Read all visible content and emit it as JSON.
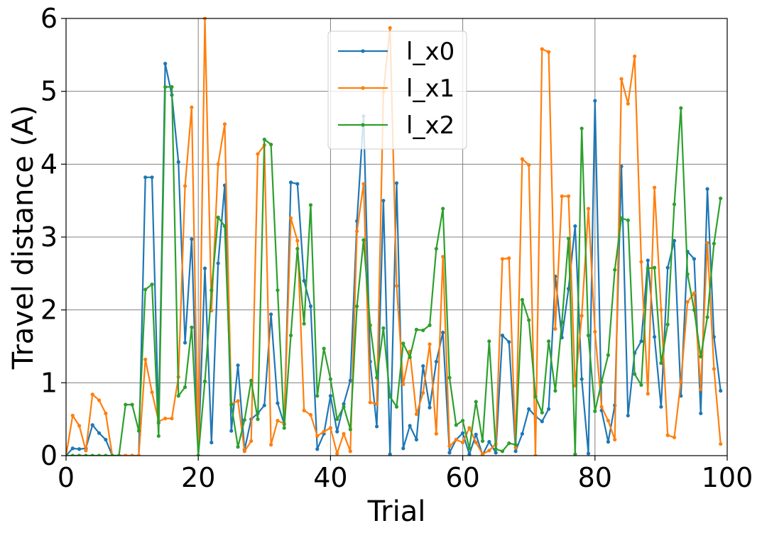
{
  "chart_data": {
    "type": "line",
    "title": "",
    "xlabel": "Trial",
    "ylabel": "Travel distance (A)",
    "xlim": [
      0,
      100
    ],
    "ylim": [
      0,
      6
    ],
    "xticks": [
      0,
      20,
      40,
      60,
      80,
      100
    ],
    "yticks": [
      0,
      1,
      2,
      3,
      4,
      5,
      6
    ],
    "grid": true,
    "legend_position": "top-center",
    "series": [
      {
        "name": "l_x0",
        "color": "#1f77b4",
        "x": [
          0,
          1,
          2,
          3,
          4,
          5,
          6,
          7,
          8,
          9,
          10,
          11,
          12,
          13,
          14,
          15,
          16,
          17,
          18,
          19,
          20,
          21,
          22,
          23,
          24,
          25,
          26,
          27,
          28,
          29,
          30,
          31,
          32,
          33,
          34,
          35,
          36,
          37,
          38,
          39,
          40,
          41,
          42,
          43,
          44,
          45,
          46,
          47,
          48,
          49,
          50,
          51,
          52,
          53,
          54,
          55,
          56,
          57,
          58,
          59,
          60,
          61,
          62,
          63,
          64,
          65,
          66,
          67,
          68,
          69,
          70,
          71,
          72,
          73,
          74,
          75,
          76,
          77,
          78,
          79,
          80,
          81,
          82,
          83,
          84,
          85,
          86,
          87,
          88,
          89,
          90,
          91,
          92,
          93,
          94,
          95,
          96,
          97,
          98,
          99
        ],
        "y": [
          0.0,
          0.1,
          0.09,
          0.1,
          0.42,
          0.31,
          0.22,
          0.0,
          0.0,
          0.0,
          0.0,
          0.0,
          3.82,
          3.82,
          0.45,
          5.38,
          4.95,
          4.03,
          1.55,
          2.97,
          0.0,
          2.57,
          0.18,
          2.64,
          3.71,
          0.34,
          1.24,
          0.08,
          0.5,
          0.58,
          0.69,
          1.94,
          0.72,
          0.43,
          3.75,
          3.73,
          2.4,
          2.05,
          0.09,
          0.3,
          0.82,
          0.33,
          0.71,
          1.03,
          3.22,
          4.66,
          1.29,
          0.4,
          3.5,
          0.02,
          3.74,
          0.1,
          0.41,
          0.22,
          1.23,
          0.66,
          1.29,
          1.69,
          0.04,
          0.22,
          0.31,
          0.02,
          0.29,
          0.01,
          0.19,
          0.04,
          1.65,
          1.56,
          0.06,
          0.3,
          0.64,
          0.54,
          0.47,
          0.64,
          2.46,
          1.62,
          2.29,
          3.15,
          1.05,
          0.03,
          4.87,
          0.62,
          0.19,
          0.69,
          3.97,
          0.55,
          1.41,
          1.57,
          2.68,
          1.63,
          0.67,
          2.58,
          2.95,
          0.82,
          2.8,
          2.7,
          0.58,
          3.66,
          1.63,
          0.89
        ]
      },
      {
        "name": "l_x1",
        "color": "#ff7f0e",
        "x": [
          0,
          1,
          2,
          3,
          4,
          5,
          6,
          7,
          8,
          9,
          10,
          11,
          12,
          13,
          14,
          15,
          16,
          17,
          18,
          19,
          20,
          21,
          22,
          23,
          24,
          25,
          26,
          27,
          28,
          29,
          30,
          31,
          32,
          33,
          34,
          35,
          36,
          37,
          38,
          39,
          40,
          41,
          42,
          43,
          44,
          45,
          46,
          47,
          48,
          49,
          50,
          51,
          52,
          53,
          54,
          55,
          56,
          57,
          58,
          59,
          60,
          61,
          62,
          63,
          64,
          65,
          66,
          67,
          68,
          69,
          70,
          71,
          72,
          73,
          74,
          75,
          76,
          77,
          78,
          79,
          80,
          81,
          82,
          83,
          84,
          85,
          86,
          87,
          88,
          89,
          90,
          91,
          92,
          93,
          94,
          95,
          96,
          97,
          98,
          99
        ],
        "y": [
          0.0,
          0.55,
          0.41,
          0.07,
          0.84,
          0.76,
          0.58,
          0.0,
          0.0,
          0.0,
          0.0,
          0.0,
          1.32,
          0.87,
          0.47,
          0.51,
          0.51,
          1.08,
          3.7,
          4.78,
          0.0,
          6.0,
          1.99,
          4.0,
          4.55,
          0.71,
          0.75,
          0.06,
          0.2,
          4.14,
          4.26,
          0.15,
          0.48,
          0.44,
          3.26,
          2.95,
          0.62,
          0.56,
          0.27,
          0.33,
          0.38,
          0.03,
          0.3,
          0.06,
          3.08,
          3.73,
          0.73,
          0.71,
          4.99,
          5.87,
          2.33,
          0.98,
          1.43,
          0.57,
          0.86,
          1.53,
          0.3,
          2.73,
          0.13,
          0.22,
          0.18,
          0.38,
          0.18,
          0.02,
          0.07,
          0.16,
          2.7,
          2.71,
          0.11,
          4.07,
          3.99,
          0.0,
          5.58,
          5.54,
          1.74,
          3.56,
          3.56,
          0.96,
          1.92,
          3.39,
          1.7,
          0.67,
          0.48,
          0.22,
          5.17,
          4.83,
          5.48,
          2.66,
          0.85,
          3.68,
          2.0,
          0.28,
          0.25,
          1.02,
          2.11,
          2.23,
          0.91,
          2.92,
          1.19,
          0.16
        ]
      },
      {
        "name": "l_x2",
        "color": "#2ca02c",
        "x": [
          0,
          1,
          2,
          3,
          4,
          5,
          6,
          7,
          8,
          9,
          10,
          11,
          12,
          13,
          14,
          15,
          16,
          17,
          18,
          19,
          20,
          21,
          22,
          23,
          24,
          25,
          26,
          27,
          28,
          29,
          30,
          31,
          32,
          33,
          34,
          35,
          36,
          37,
          38,
          39,
          40,
          41,
          42,
          43,
          44,
          45,
          46,
          47,
          48,
          49,
          50,
          51,
          52,
          53,
          54,
          55,
          56,
          57,
          58,
          59,
          60,
          61,
          62,
          63,
          64,
          65,
          66,
          67,
          68,
          69,
          70,
          71,
          72,
          73,
          74,
          75,
          76,
          77,
          78,
          79,
          80,
          81,
          82,
          83,
          84,
          85,
          86,
          87,
          88,
          89,
          90,
          91,
          92,
          93,
          94,
          95,
          96,
          97,
          98,
          99
        ],
        "y": [
          0.0,
          0.0,
          0.0,
          0.0,
          0.0,
          0.0,
          0.0,
          0.0,
          0.0,
          0.7,
          0.7,
          0.34,
          2.28,
          2.35,
          0.27,
          5.06,
          5.06,
          0.82,
          0.94,
          1.76,
          0.0,
          1.02,
          2.27,
          3.27,
          3.15,
          0.7,
          0.12,
          0.49,
          1.03,
          0.5,
          4.34,
          4.27,
          2.27,
          0.38,
          1.65,
          2.84,
          1.81,
          3.44,
          0.82,
          1.47,
          1.05,
          0.5,
          0.67,
          0.36,
          2.05,
          2.96,
          1.79,
          1.07,
          1.75,
          0.81,
          0.67,
          1.54,
          1.35,
          1.73,
          1.72,
          1.79,
          2.84,
          3.39,
          1.07,
          0.42,
          0.48,
          0.1,
          0.74,
          0.2,
          1.57,
          0.09,
          0.06,
          0.17,
          0.15,
          2.14,
          1.86,
          0.81,
          0.59,
          1.57,
          0.89,
          1.83,
          2.98,
          0.02,
          4.49,
          1.65,
          0.61,
          1.01,
          1.38,
          2.55,
          3.26,
          3.23,
          1.12,
          0.97,
          2.57,
          2.58,
          1.27,
          1.8,
          3.45,
          4.77,
          2.49,
          2.0,
          1.36,
          1.9,
          2.91,
          3.53
        ]
      }
    ]
  }
}
